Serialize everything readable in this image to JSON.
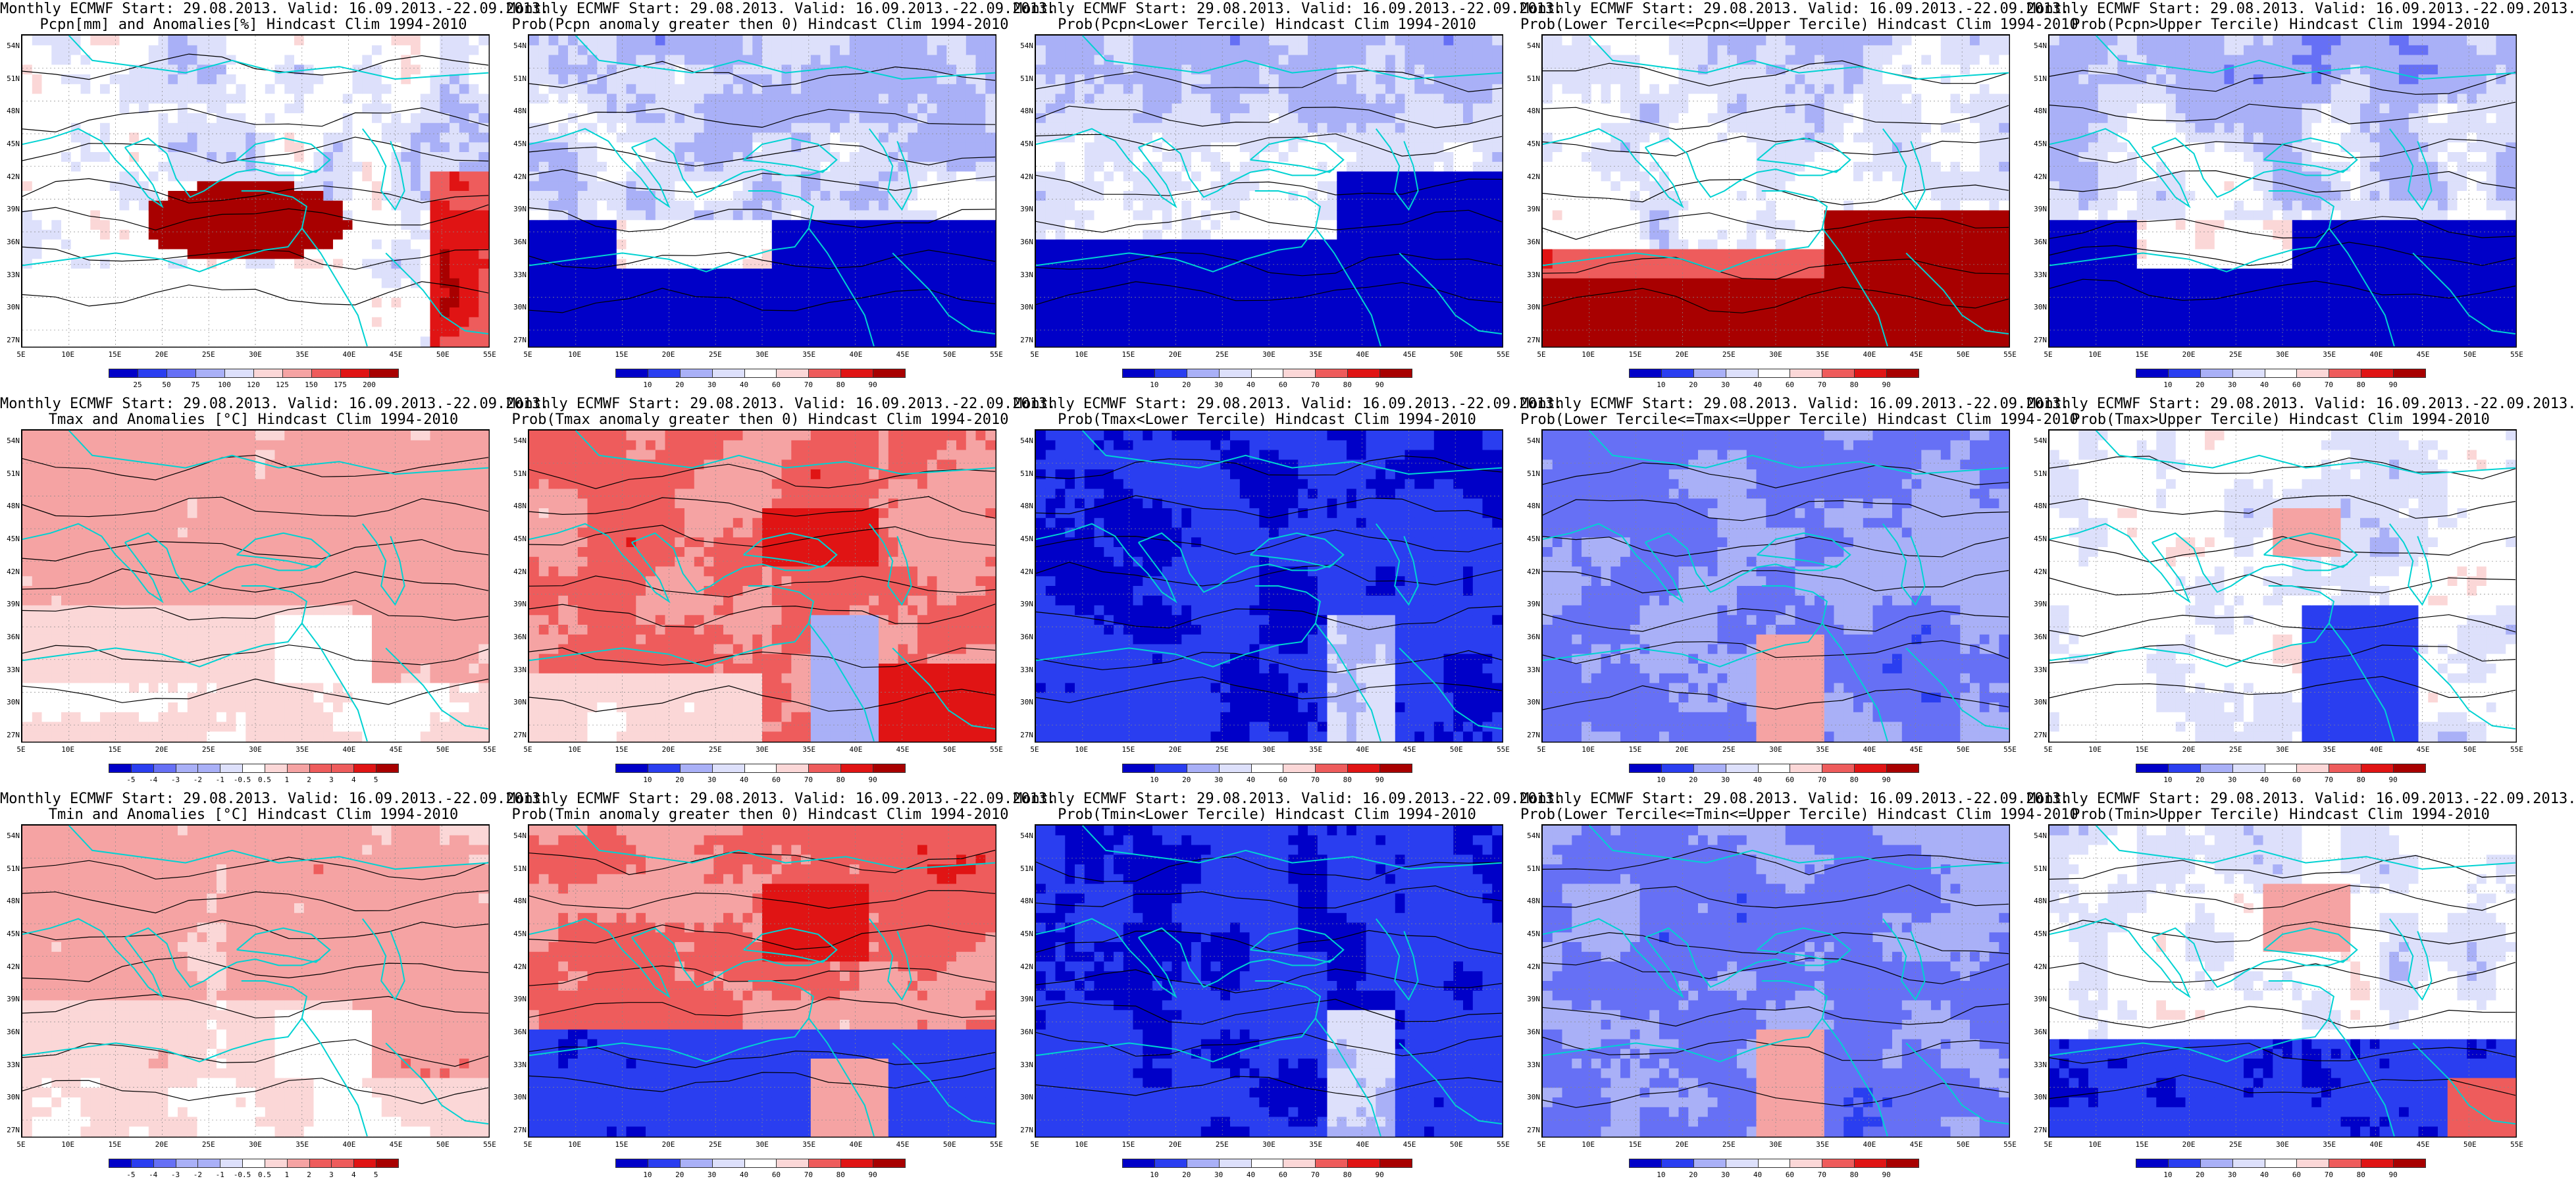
{
  "panels": [
    {
      "title1": "Monthly ECMWF Start: 29.08.2013. Valid: 16.09.2013.-22.09.2013.",
      "title2": "Pcpn[mm] and Anomalies[%] Hindcast Clim 1994-2010",
      "scheme": "pcpn",
      "cbar_ticks": [
        "25",
        "50",
        "75",
        "100",
        "120",
        "125",
        "150",
        "175",
        "200"
      ]
    },
    {
      "title1": "Monthly ECMWF Start: 29.08.2013. Valid: 16.09.2013.-22.09.2013.",
      "title2": "Prob(Pcpn anomaly greater then 0) Hindcast Clim 1994-2010",
      "scheme": "dry",
      "cbar_ticks": [
        "10",
        "20",
        "30",
        "40",
        "60",
        "70",
        "80",
        "90"
      ]
    },
    {
      "title1": "Monthly ECMWF Start: 29.08.2013. Valid: 16.09.2013.-22.09.2013.",
      "title2": "Prob(Pcpn<Lower Tercile) Hindcast Clim 1994-2010",
      "scheme": "dryblue",
      "cbar_ticks": [
        "10",
        "20",
        "30",
        "40",
        "60",
        "70",
        "80",
        "90"
      ]
    },
    {
      "title1": "Monthly ECMWF Start: 29.08.2013. Valid: 16.09.2013.-22.09.2013.",
      "title2": "Prob(Lower Tercile<=Pcpn<=Upper Tercile) Hindcast Clim 1994-2010",
      "scheme": "redsouth",
      "cbar_ticks": [
        "10",
        "20",
        "30",
        "40",
        "60",
        "70",
        "80",
        "90"
      ]
    },
    {
      "title1": "Monthly ECMWF Start: 29.08.2013. Valid: 16.09.2013.-22.09.2013.",
      "title2": "Prob(Pcpn>Upper Tercile) Hindcast Clim 1994-2010",
      "scheme": "dry",
      "cbar_ticks": [
        "10",
        "20",
        "30",
        "40",
        "60",
        "70",
        "80",
        "90"
      ]
    },
    {
      "title1": "Monthly ECMWF Start: 29.08.2013. Valid: 16.09.2013.-22.09.2013.",
      "title2": "Tmax and Anomalies [°C] Hindcast Clim 1994-2010",
      "scheme": "warmlight",
      "cbar_ticks": [
        "-5",
        "-4",
        "-3",
        "-2",
        "-1",
        "-0.5",
        "0.5",
        "1",
        "2",
        "3",
        "4",
        "5"
      ]
    },
    {
      "title1": "Monthly ECMWF Start: 29.08.2013. Valid: 16.09.2013.-22.09.2013.",
      "title2": "Prob(Tmax anomaly greater then 0) Hindcast Clim 1994-2010",
      "scheme": "warm",
      "cbar_ticks": [
        "10",
        "20",
        "30",
        "40",
        "60",
        "70",
        "80",
        "90"
      ]
    },
    {
      "title1": "Monthly ECMWF Start: 29.08.2013. Valid: 16.09.2013.-22.09.2013.",
      "title2": "Prob(Tmax<Lower Tercile) Hindcast Clim 1994-2010",
      "scheme": "coldblue",
      "cbar_ticks": [
        "10",
        "20",
        "30",
        "40",
        "60",
        "70",
        "80",
        "90"
      ]
    },
    {
      "title1": "Monthly ECMWF Start: 29.08.2013. Valid: 16.09.2013.-22.09.2013.",
      "title2": "Prob(Lower Tercile<=Tmax<=Upper Tercile) Hindcast Clim 1994-2010",
      "scheme": "mixed",
      "cbar_ticks": [
        "10",
        "20",
        "30",
        "40",
        "60",
        "70",
        "80",
        "90"
      ]
    },
    {
      "title1": "Monthly ECMWF Start: 29.08.2013. Valid: 16.09.2013.-22.09.2013.",
      "title2": "Prob(Tmax>Upper Tercile) Hindcast Clim 1994-2010",
      "scheme": "lightmixed",
      "cbar_ticks": [
        "10",
        "20",
        "30",
        "40",
        "60",
        "70",
        "80",
        "90"
      ]
    },
    {
      "title1": "Monthly ECMWF Start: 29.08.2013. Valid: 16.09.2013.-22.09.2013.",
      "title2": "Tmin and Anomalies [°C] Hindcast Clim 1994-2010",
      "scheme": "warmlight",
      "cbar_ticks": [
        "-5",
        "-4",
        "-3",
        "-2",
        "-1",
        "-0.5",
        "0.5",
        "1",
        "2",
        "3",
        "4",
        "5"
      ]
    },
    {
      "title1": "Monthly ECMWF Start: 29.08.2013. Valid: 16.09.2013.-22.09.2013.",
      "title2": "Prob(Tmin anomaly greater then 0) Hindcast Clim 1994-2010",
      "scheme": "warmsouthblue",
      "cbar_ticks": [
        "10",
        "20",
        "30",
        "40",
        "60",
        "70",
        "80",
        "90"
      ]
    },
    {
      "title1": "Monthly ECMWF Start: 29.08.2013. Valid: 16.09.2013.-22.09.2013.",
      "title2": "Prob(Tmin<Lower Tercile) Hindcast Clim 1994-2010",
      "scheme": "coldblue",
      "cbar_ticks": [
        "10",
        "20",
        "30",
        "40",
        "60",
        "70",
        "80",
        "90"
      ]
    },
    {
      "title1": "Monthly ECMWF Start: 29.08.2013. Valid: 16.09.2013.-22.09.2013.",
      "title2": "Prob(Lower Tercile<=Tmin<=Upper Tercile) Hindcast Clim 1994-2010",
      "scheme": "mixed",
      "cbar_ticks": [
        "10",
        "20",
        "30",
        "40",
        "60",
        "70",
        "80",
        "90"
      ]
    },
    {
      "title1": "Monthly ECMWF Start: 29.08.2013. Valid: 16.09.2013.-22.09.2013.",
      "title2": "Prob(Tmin>Upper Tercile) Hindcast Clim 1994-2010",
      "scheme": "lightmixedsouth",
      "cbar_ticks": [
        "10",
        "20",
        "30",
        "40",
        "60",
        "70",
        "80",
        "90"
      ]
    }
  ],
  "lat_labels": [
    "54N",
    "51N",
    "48N",
    "45N",
    "42N",
    "39N",
    "36N",
    "33N",
    "30N",
    "27N"
  ],
  "lon_labels": [
    "5E",
    "10E",
    "15E",
    "20E",
    "25E",
    "30E",
    "35E",
    "40E",
    "45E",
    "50E",
    "55E"
  ],
  "colors": {
    "deep_blue": "#0000c8",
    "blue": "#2a3ef0",
    "mid_blue": "#6670f5",
    "light_blue": "#a9b0f7",
    "pale_blue": "#dde0fb",
    "white": "#ffffff",
    "pale_red": "#fbd7d7",
    "light_red": "#f5a3a3",
    "mid_red": "#ee5c5c",
    "red": "#e01414",
    "dark_red": "#a80000",
    "coast": "#00d2d2",
    "contour": "#000000"
  }
}
